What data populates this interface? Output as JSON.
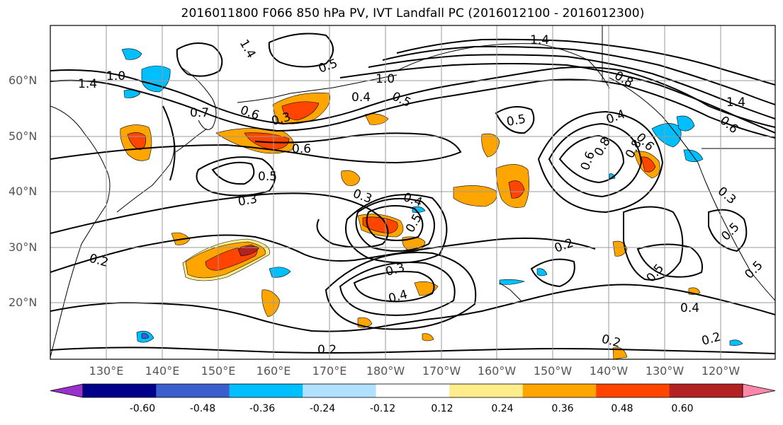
{
  "title": "2016011800 F066 850 hPa PV, IVT Landfall PC (2016012100 - 2016012300)",
  "lat_ticks": [
    "60°N",
    "50°N",
    "40°N",
    "30°N",
    "20°N"
  ],
  "lon_ticks": [
    "130°E",
    "140°E",
    "150°E",
    "160°E",
    "170°E",
    "180°W",
    "170°W",
    "160°W",
    "150°W",
    "140°W",
    "130°W",
    "120°W"
  ],
  "colorbar": {
    "colors": [
      "#9932cc",
      "#00008b",
      "#3a5fcd",
      "#00bfff",
      "#b0e2ff",
      "#ffffff",
      "#ffec8b",
      "#ffa500",
      "#ff4500",
      "#b22222",
      "#ff88aa"
    ],
    "tick_labels": [
      "-0.60",
      "-0.48",
      "-0.36",
      "-0.24",
      "-0.12",
      "0.12",
      "0.24",
      "0.36",
      "0.48",
      "0.60"
    ]
  },
  "contour_labels": [
    "1.4",
    "1.4",
    "1.0",
    "1.4",
    "0.8",
    "0.7",
    "0.6",
    "0.5",
    "0.3",
    "0.4",
    "0.5",
    "1.0",
    "0.6",
    "0.5",
    "0.3",
    "0.3",
    "0.4",
    "0.5",
    "0.8",
    "0.6",
    "0.8",
    "0.4",
    "0.5",
    "0.6",
    "0.5",
    "1.4",
    "0.6",
    "0.3",
    "0.2",
    "0.2",
    "0.3",
    "0.4",
    "0.5",
    "0.4",
    "0.2",
    "0.2",
    "0.2",
    "0.5"
  ]
}
